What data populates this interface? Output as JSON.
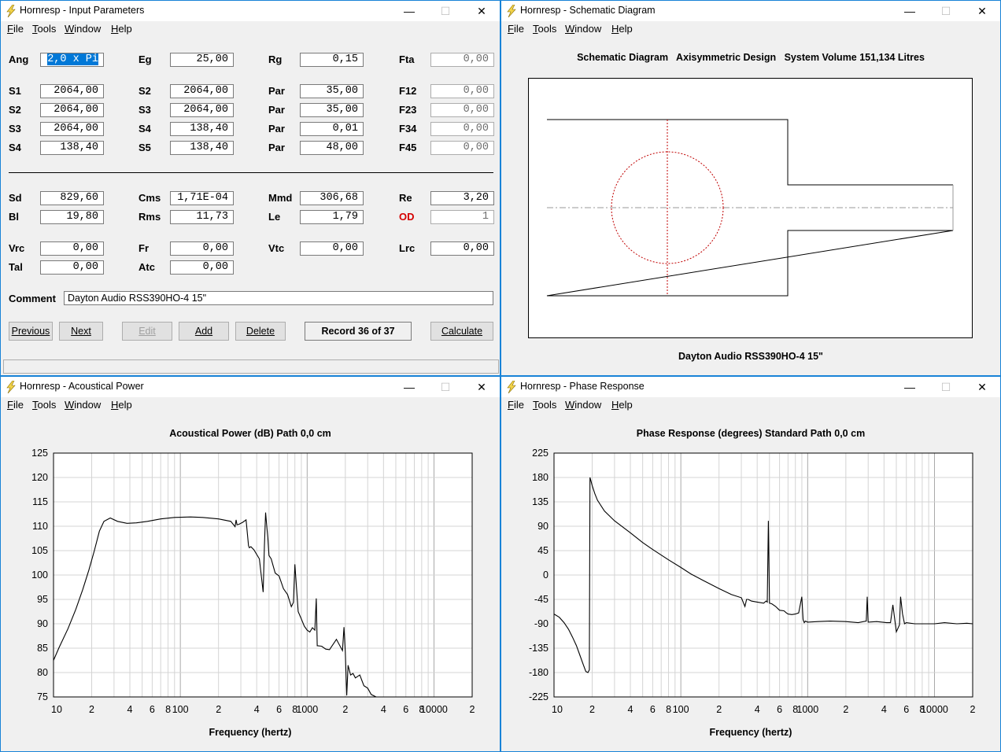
{
  "menu": [
    "File",
    "Tools",
    "Window",
    "Help"
  ],
  "controls": {
    "minimize": "—",
    "maximize": "☐",
    "close": "✕"
  },
  "input_window": {
    "title": "Hornresp - Input Parameters",
    "fields": [
      {
        "label": "Ang",
        "value": "2,0 x Pi",
        "selected": true
      },
      {
        "label": "Eg",
        "value": "25,00"
      },
      {
        "label": "Rg",
        "value": "0,15"
      },
      {
        "label": "Fta",
        "value": "0,00",
        "disabled": true
      },
      {
        "label": "S1",
        "value": "2064,00"
      },
      {
        "label": "S2",
        "value": "2064,00"
      },
      {
        "label": "Par",
        "value": "35,00"
      },
      {
        "label": "F12",
        "value": "0,00",
        "disabled": true
      },
      {
        "label": "S2",
        "value": "2064,00"
      },
      {
        "label": "S3",
        "value": "2064,00"
      },
      {
        "label": "Par",
        "value": "35,00"
      },
      {
        "label": "F23",
        "value": "0,00",
        "disabled": true
      },
      {
        "label": "S3",
        "value": "2064,00"
      },
      {
        "label": "S4",
        "value": "138,40"
      },
      {
        "label": "Par",
        "value": "0,01"
      },
      {
        "label": "F34",
        "value": "0,00",
        "disabled": true
      },
      {
        "label": "S4",
        "value": "138,40"
      },
      {
        "label": "S5",
        "value": "138,40"
      },
      {
        "label": "Par",
        "value": "48,00"
      },
      {
        "label": "F45",
        "value": "0,00",
        "disabled": true
      },
      {
        "label": "Sd",
        "value": "829,60"
      },
      {
        "label": "Cms",
        "value": "1,71E-04"
      },
      {
        "label": "Mmd",
        "value": "306,68"
      },
      {
        "label": "Re",
        "value": "3,20"
      },
      {
        "label": "Bl",
        "value": "19,80"
      },
      {
        "label": "Rms",
        "value": "11,73"
      },
      {
        "label": "Le",
        "value": "1,79"
      },
      {
        "label": "OD",
        "value": "1",
        "disabled": true,
        "red": true
      },
      {
        "label": "Vrc",
        "value": "0,00"
      },
      {
        "label": "Fr",
        "value": "0,00"
      },
      {
        "label": "Vtc",
        "value": "0,00"
      },
      {
        "label": "Lrc",
        "value": "0,00"
      },
      {
        "label": "Tal",
        "value": "0,00"
      },
      {
        "label": "Atc",
        "value": "0,00"
      }
    ],
    "comment_label": "Comment",
    "comment_value": "Dayton Audio RSS390HO-4 15\"",
    "buttons": {
      "previous": "Previous",
      "next": "Next",
      "edit": "Edit",
      "add": "Add",
      "delete": "Delete",
      "record": "Record 36 of 37",
      "calculate": "Calculate"
    }
  },
  "schematic_window": {
    "title": "Hornresp - Schematic Diagram",
    "heading": "Schematic Diagram   Axisymmetric Design   System Volume 151,134 Litres",
    "caption": "Dayton Audio RSS390HO-4 15\""
  },
  "power_window": {
    "title": "Hornresp - Acoustical Power",
    "chart_data": {
      "type": "line",
      "title": "Acoustical Power (dB)   Path 0,0 cm",
      "xlabel": "Frequency (hertz)",
      "ylabel": "",
      "x_scale": "log",
      "xlim": [
        10,
        20000
      ],
      "ylim": [
        75,
        125
      ],
      "yticks": [
        "125",
        "120",
        "115",
        "110",
        "105",
        "100",
        "95",
        "90",
        "85",
        "80",
        "75"
      ],
      "xticks": [
        "10",
        "2",
        "4",
        "6",
        "8",
        "100",
        "2",
        "4",
        "6",
        "8",
        "1000",
        "2",
        "4",
        "6",
        "8",
        "10000",
        "2"
      ],
      "grid": true,
      "series": [
        {
          "x": [
            10,
            11,
            13,
            15,
            17,
            19,
            21,
            23,
            25,
            28,
            32,
            38,
            45,
            55,
            70,
            90,
            120,
            150,
            200,
            250,
            270,
            275,
            280,
            290,
            310,
            330,
            345,
            350,
            360,
            380,
            420,
            450,
            460,
            470,
            480,
            490,
            500,
            520,
            560,
            600,
            650,
            700,
            750,
            780,
            800,
            850,
            900,
            950,
            1000,
            1050,
            1100,
            1150,
            1180,
            1200,
            1210,
            1300,
            1400,
            1500,
            1700,
            1900,
            1950,
            2000,
            2050,
            2100,
            2200,
            2300,
            2400,
            2600,
            2800,
            3000,
            3200,
            3500
          ],
          "y": [
            82.5,
            85,
            89,
            93,
            97,
            101,
            105,
            109,
            111,
            111.7,
            111,
            110.6,
            110.7,
            111,
            111.5,
            111.8,
            111.9,
            111.8,
            111.5,
            111,
            109.9,
            111.3,
            110.3,
            110.4,
            110.8,
            111.3,
            106,
            105.6,
            105.8,
            105.2,
            103.3,
            96.5,
            106,
            112.8,
            110,
            107.5,
            104,
            103.3,
            100.4,
            99.8,
            97.2,
            96,
            93.5,
            94.4,
            102.2,
            92.5,
            91,
            89.5,
            88.7,
            88.3,
            89.2,
            88.7,
            95.2,
            85.5,
            85.5,
            85.4,
            84.8,
            84.7,
            86.8,
            84.5,
            89.3,
            84.2,
            75.3,
            81.5,
            79.5,
            79.8,
            78.9,
            79.5,
            77.3,
            76.8,
            75.5,
            74
          ]
        }
      ]
    }
  },
  "phase_window": {
    "title": "Hornresp - Phase Response",
    "chart_data": {
      "type": "line",
      "title": "Phase Response (degrees)   Standard   Path 0,0 cm",
      "xlabel": "Frequency (hertz)",
      "ylabel": "",
      "x_scale": "log",
      "xlim": [
        10,
        20000
      ],
      "ylim": [
        -225,
        225
      ],
      "yticks": [
        "225",
        "180",
        "135",
        "90",
        "45",
        "0",
        "-45",
        "-90",
        "-135",
        "-180",
        "-225"
      ],
      "xticks": [
        "10",
        "2",
        "4",
        "6",
        "8",
        "100",
        "2",
        "4",
        "6",
        "8",
        "1000",
        "2",
        "4",
        "6",
        "8",
        "10000",
        "2"
      ],
      "grid": true,
      "series": [
        {
          "x": [
            10,
            11,
            12,
            13,
            14,
            15,
            16,
            17,
            17.8,
            18.5,
            19,
            19.2,
            19.5,
            20,
            21,
            22,
            25,
            30,
            40,
            50,
            60,
            80,
            100,
            120,
            150,
            200,
            250,
            300,
            320,
            330,
            340,
            360,
            400,
            450,
            470,
            480,
            490,
            500,
            520,
            560,
            600,
            650,
            680,
            700,
            750,
            800,
            850,
            900,
            920,
            940,
            960,
            1000,
            1200,
            1500,
            2000,
            2500,
            2900,
            2950,
            3000,
            3500,
            4200,
            4500,
            4700,
            5000,
            5300,
            5400,
            5600,
            5800,
            6000,
            7000,
            8000,
            10000,
            12000,
            15000,
            18000,
            20000
          ],
          "y": [
            -72,
            -78,
            -88,
            -100,
            -115,
            -130,
            -148,
            -165,
            -178,
            -180,
            -175,
            180,
            175,
            165,
            150,
            138,
            118,
            100,
            78,
            60,
            47,
            28,
            14,
            2,
            -10,
            -25,
            -36,
            -42,
            -58,
            -45,
            -45,
            -48,
            -50,
            -52,
            -48,
            -50,
            100,
            -52,
            -53,
            -58,
            -65,
            -66,
            -70,
            -72,
            -73,
            -72,
            -70,
            -40,
            -82,
            -88,
            -85,
            -87,
            -86,
            -85,
            -86,
            -88,
            -85,
            -40,
            -87,
            -86,
            -88,
            -88,
            -55,
            -105,
            -92,
            -40,
            -72,
            -90,
            -88,
            -90,
            -90,
            -90,
            -88,
            -90,
            -89,
            -90
          ]
        }
      ]
    }
  }
}
